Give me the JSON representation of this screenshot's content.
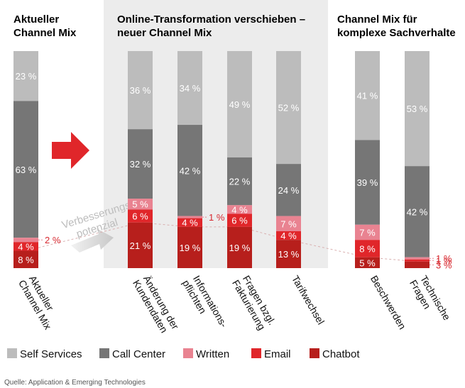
{
  "chart_data": {
    "type": "bar",
    "stacked": true,
    "sections": [
      {
        "title_line1": "Aktueller",
        "title_line2": "Channel Mix",
        "shaded": false
      },
      {
        "title_line1": "Online-Transformation verschieben –",
        "title_line2": "neuer Channel Mix",
        "shaded": true
      },
      {
        "title_line1": "Channel Mix für",
        "title_line2": "komplexe Sachverhalte",
        "shaded": false
      }
    ],
    "series_names": [
      "Self Services",
      "Call Center",
      "Written",
      "Email",
      "Chatbot"
    ],
    "colors": [
      "#bcbcbc",
      "#767676",
      "#e98391",
      "#e0262a",
      "#b71f1c"
    ],
    "bars": [
      {
        "section": 0,
        "label": [
          "Aktueller",
          "Channel Mix"
        ],
        "values": [
          23,
          63,
          2,
          4,
          8
        ],
        "labels": [
          "23 %",
          "63 %",
          "2 %",
          "4 %",
          "8 %"
        ]
      },
      {
        "section": 1,
        "label": [
          "Änderung der",
          "Kundendaten"
        ],
        "values": [
          36,
          32,
          5,
          6,
          21
        ],
        "labels": [
          "36 %",
          "32 %",
          "5 %",
          "6 %",
          "21 %"
        ]
      },
      {
        "section": 1,
        "label": [
          "Informations-",
          "pflichten"
        ],
        "values": [
          34,
          42,
          1,
          4,
          19
        ],
        "labels": [
          "34 %",
          "42 %",
          "1 %",
          "4 %",
          "19 %"
        ]
      },
      {
        "section": 1,
        "label": [
          "Fragen bzgl.",
          "Fakturierung"
        ],
        "values": [
          49,
          22,
          4,
          6,
          19
        ],
        "labels": [
          "49 %",
          "22 %",
          "4 %",
          "6 %",
          "19 %"
        ]
      },
      {
        "section": 1,
        "label": [
          "Tarifwechsel"
        ],
        "values": [
          52,
          24,
          7,
          4,
          13
        ],
        "labels": [
          "52 %",
          "24 %",
          "7 %",
          "4 %",
          "13 %"
        ]
      },
      {
        "section": 2,
        "label": [
          "Beschwerden"
        ],
        "values": [
          41,
          39,
          7,
          8,
          5
        ],
        "labels": [
          "41 %",
          "39 %",
          "7 %",
          "8 %",
          "5 %"
        ]
      },
      {
        "section": 2,
        "label": [
          "Technische",
          "Fragen"
        ],
        "values": [
          53,
          42,
          1,
          1,
          3
        ],
        "labels": [
          "53 %",
          "42 %",
          "1 %",
          "1 %",
          "3 %"
        ]
      }
    ],
    "annotation": {
      "line1": "Verbesserungs-",
      "line2": "potenzial"
    },
    "legend_position": "bottom",
    "source": "Quelle: Application & Emerging Technologies"
  }
}
